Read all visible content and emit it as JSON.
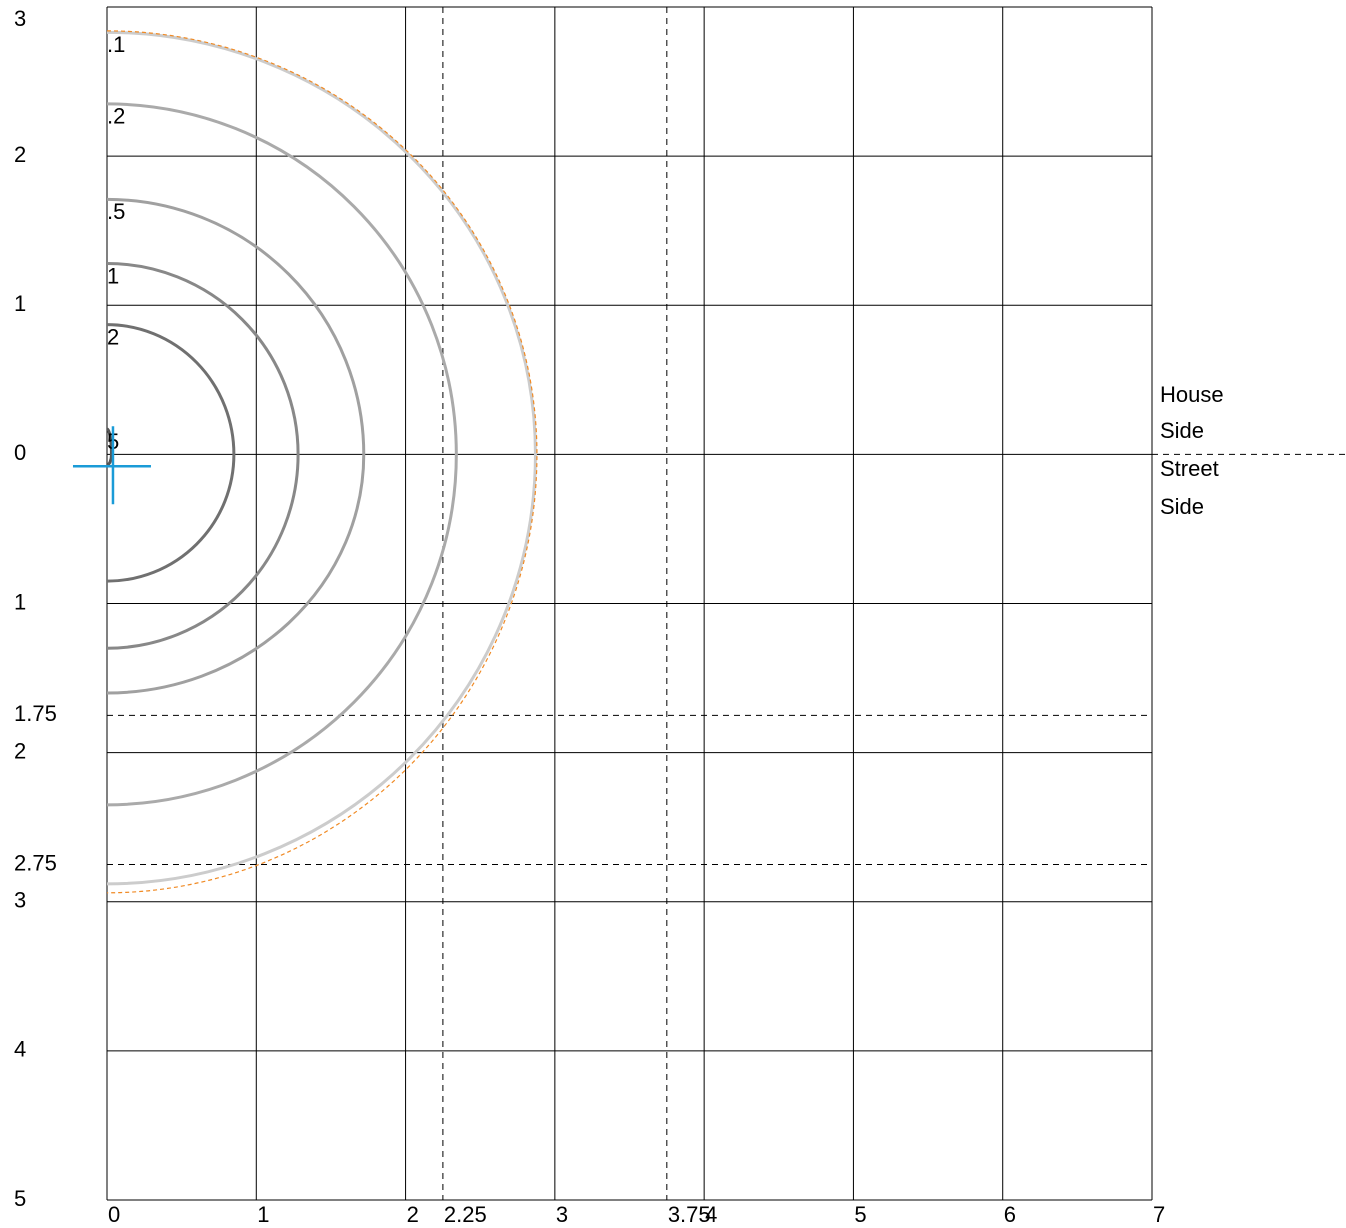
{
  "chart_data": {
    "type": "contour",
    "xlim": [
      0,
      7
    ],
    "ylim": [
      -5,
      3
    ],
    "xticks": [
      0,
      1,
      2,
      3,
      4,
      5,
      6,
      7
    ],
    "yticks": [
      3,
      2,
      1,
      0,
      {
        "value": -1,
        "label": "1"
      },
      {
        "value": -2,
        "label": "2"
      },
      {
        "value": -3,
        "label": "3"
      },
      {
        "value": -4,
        "label": "4"
      },
      {
        "value": -5,
        "label": "5"
      }
    ],
    "xrefs": [
      2.25,
      3.75
    ],
    "yrefs": [
      {
        "value": -1.75,
        "label": "1.75"
      },
      {
        "value": -2.75,
        "label": "2.75"
      }
    ],
    "grid": true,
    "series": [
      {
        "name": ".1",
        "color": "#cccccc",
        "values": [
          2.87,
          2.83,
          -2.88
        ]
      },
      {
        "name": ".2",
        "color": "#aaaaaa",
        "values": [
          2.34,
          2.35,
          -2.35
        ]
      },
      {
        "name": ".5",
        "color": "#a0a0a0",
        "values": [
          1.72,
          1.71,
          -1.6
        ]
      },
      {
        "name": "1",
        "color": "#888888",
        "values": [
          1.28,
          1.28,
          -1.3
        ]
      },
      {
        "name": "2",
        "color": "#707070",
        "values": [
          0.85,
          0.87,
          -0.85
        ]
      },
      {
        "name": "5",
        "color": "#555555",
        "values": [
          0.03,
          0.17,
          -0.07
        ]
      },
      {
        "color": "#f08a24",
        "dashed": true,
        "values": [
          2.88,
          2.84,
          -2.94
        ]
      }
    ],
    "luminaire": {
      "x": 0.04,
      "y": -0.08,
      "color": "#1a9bd7"
    },
    "house_side": [
      "House",
      "Side"
    ],
    "street_side": [
      "Street",
      "Side"
    ]
  }
}
